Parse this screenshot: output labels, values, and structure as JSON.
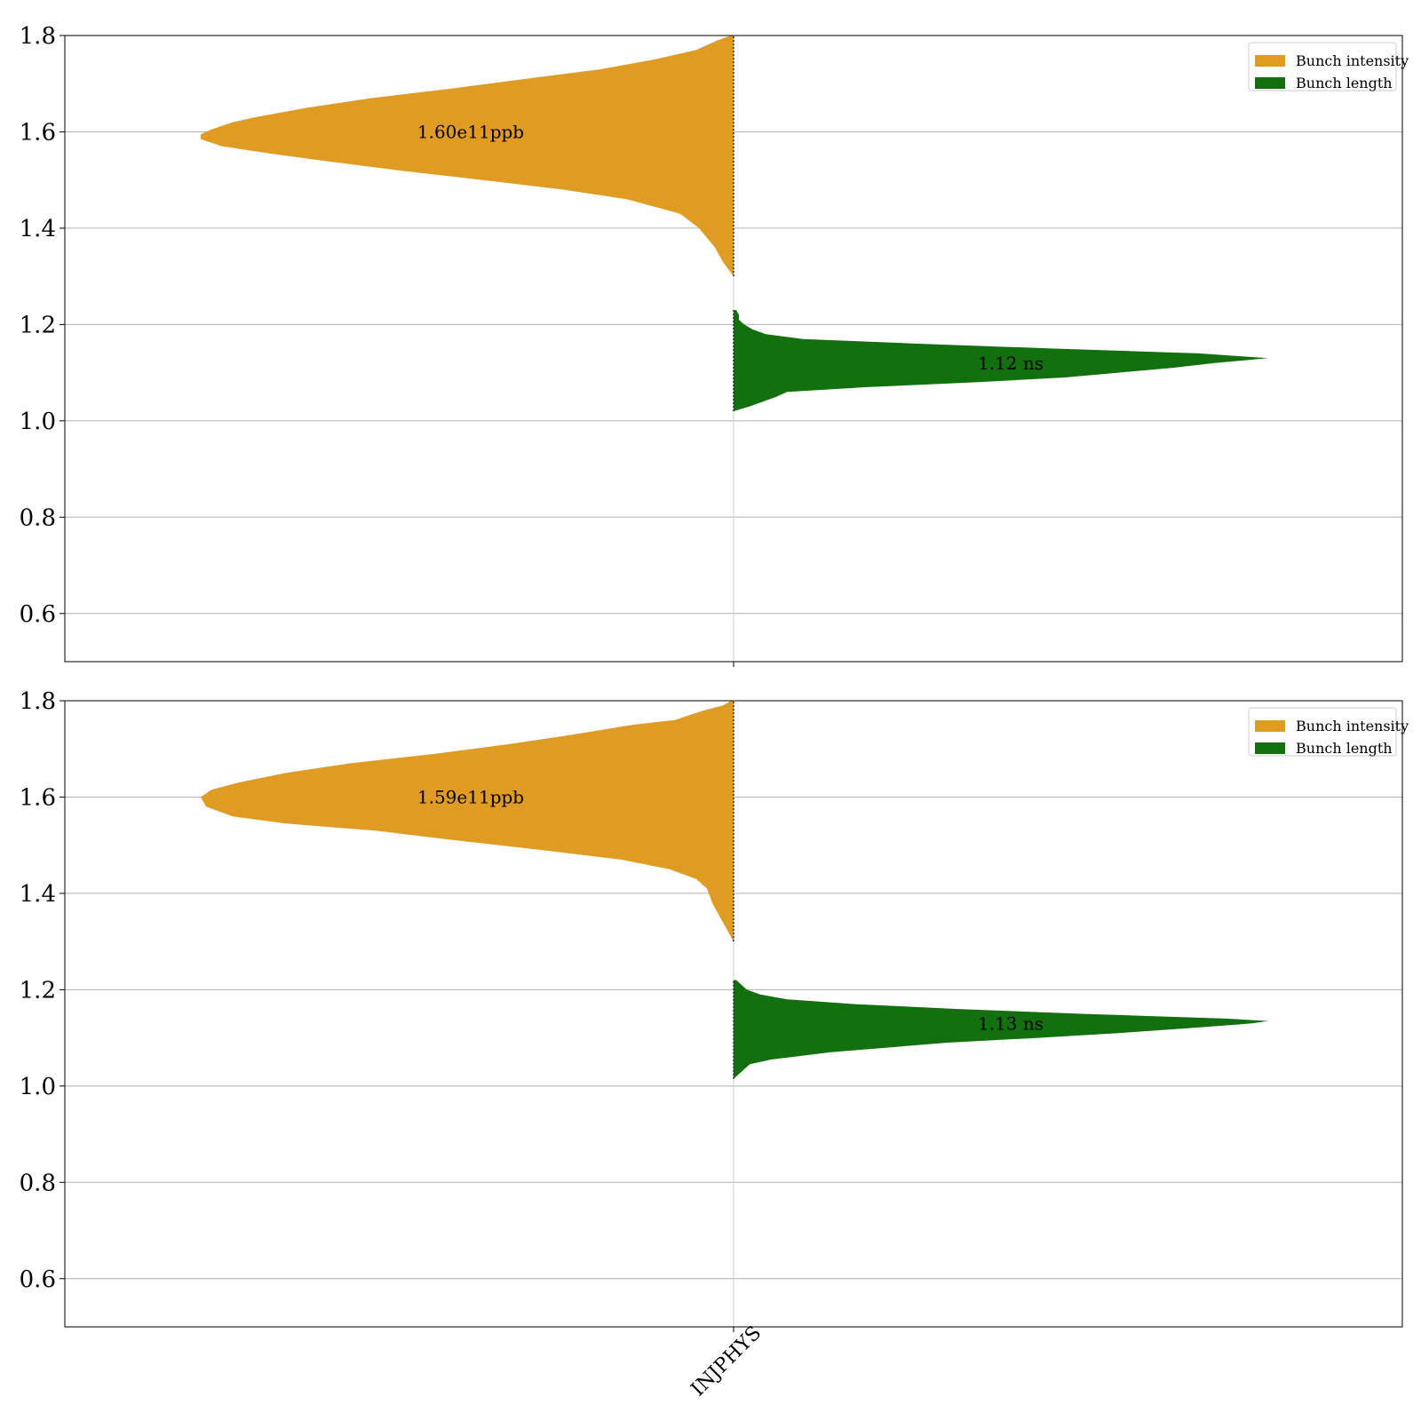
{
  "chart_data": [
    {
      "type": "violin",
      "category": "INJPHYS",
      "ylim": [
        0.5,
        1.8
      ],
      "yticks": [
        "0.6",
        "0.8",
        "1.0",
        "1.2",
        "1.4",
        "1.6",
        "1.8"
      ],
      "grid": true,
      "legend": {
        "placement": "top-right",
        "entries": [
          "Bunch intensity",
          "Bunch length"
        ]
      },
      "series": [
        {
          "name": "Bunch intensity",
          "color": "#E09B22",
          "side": "left",
          "annotation": "1.60e11ppb",
          "annotation_y": 1.6,
          "profile": [
            [
              1.3,
              0.0
            ],
            [
              1.33,
              0.02
            ],
            [
              1.36,
              0.035
            ],
            [
              1.4,
              0.065
            ],
            [
              1.43,
              0.1
            ],
            [
              1.46,
              0.2
            ],
            [
              1.48,
              0.32
            ],
            [
              1.5,
              0.47
            ],
            [
              1.52,
              0.63
            ],
            [
              1.54,
              0.77
            ],
            [
              1.555,
              0.87
            ],
            [
              1.57,
              0.96
            ],
            [
              1.585,
              1.0
            ],
            [
              1.595,
              1.0
            ],
            [
              1.605,
              0.98
            ],
            [
              1.62,
              0.94
            ],
            [
              1.63,
              0.9
            ],
            [
              1.65,
              0.8
            ],
            [
              1.67,
              0.68
            ],
            [
              1.69,
              0.53
            ],
            [
              1.71,
              0.39
            ],
            [
              1.73,
              0.25
            ],
            [
              1.75,
              0.15
            ],
            [
              1.77,
              0.07
            ],
            [
              1.79,
              0.03
            ],
            [
              1.8,
              0.005
            ]
          ]
        },
        {
          "name": "Bunch length",
          "color": "#13700F",
          "side": "right",
          "annotation": "1.12 ns",
          "annotation_y": 1.12,
          "profile": [
            [
              1.02,
              0.0
            ],
            [
              1.03,
              0.03
            ],
            [
              1.05,
              0.08
            ],
            [
              1.055,
              0.09
            ],
            [
              1.06,
              0.1
            ],
            [
              1.07,
              0.25
            ],
            [
              1.08,
              0.45
            ],
            [
              1.09,
              0.62
            ],
            [
              1.1,
              0.72
            ],
            [
              1.11,
              0.82
            ],
            [
              1.12,
              0.9
            ],
            [
              1.13,
              1.0
            ],
            [
              1.14,
              0.87
            ],
            [
              1.15,
              0.6
            ],
            [
              1.16,
              0.35
            ],
            [
              1.17,
              0.13
            ],
            [
              1.18,
              0.06
            ],
            [
              1.19,
              0.035
            ],
            [
              1.2,
              0.02
            ],
            [
              1.21,
              0.01
            ],
            [
              1.22,
              0.01
            ],
            [
              1.23,
              0.005
            ]
          ]
        }
      ]
    },
    {
      "type": "violin",
      "category": "INJPHYS",
      "ylim": [
        0.5,
        1.8
      ],
      "yticks": [
        "0.6",
        "0.8",
        "1.0",
        "1.2",
        "1.4",
        "1.6",
        "1.8"
      ],
      "grid": true,
      "legend": {
        "placement": "top-right",
        "entries": [
          "Bunch intensity",
          "Bunch length"
        ]
      },
      "series": [
        {
          "name": "Bunch intensity",
          "color": "#E09B22",
          "side": "left",
          "annotation": "1.59e11ppb",
          "annotation_y": 1.6,
          "profile": [
            [
              1.3,
              0.0
            ],
            [
              1.34,
              0.02
            ],
            [
              1.38,
              0.04
            ],
            [
              1.41,
              0.05
            ],
            [
              1.43,
              0.07
            ],
            [
              1.45,
              0.12
            ],
            [
              1.47,
              0.21
            ],
            [
              1.49,
              0.36
            ],
            [
              1.51,
              0.52
            ],
            [
              1.53,
              0.67
            ],
            [
              1.545,
              0.84
            ],
            [
              1.56,
              0.94
            ],
            [
              1.58,
              0.99
            ],
            [
              1.6,
              1.0
            ],
            [
              1.615,
              0.98
            ],
            [
              1.63,
              0.93
            ],
            [
              1.65,
              0.84
            ],
            [
              1.67,
              0.72
            ],
            [
              1.69,
              0.56
            ],
            [
              1.71,
              0.42
            ],
            [
              1.73,
              0.3
            ],
            [
              1.75,
              0.19
            ],
            [
              1.76,
              0.11
            ],
            [
              1.78,
              0.055
            ],
            [
              1.79,
              0.02
            ],
            [
              1.8,
              0.005
            ]
          ]
        },
        {
          "name": "Bunch length",
          "color": "#13700F",
          "side": "right",
          "annotation": "1.13 ns",
          "annotation_y": 1.13,
          "profile": [
            [
              1.015,
              0.0
            ],
            [
              1.03,
              0.015
            ],
            [
              1.045,
              0.03
            ],
            [
              1.055,
              0.07
            ],
            [
              1.07,
              0.18
            ],
            [
              1.09,
              0.4
            ],
            [
              1.1,
              0.57
            ],
            [
              1.11,
              0.72
            ],
            [
              1.12,
              0.85
            ],
            [
              1.13,
              0.97
            ],
            [
              1.135,
              1.0
            ],
            [
              1.14,
              0.92
            ],
            [
              1.15,
              0.65
            ],
            [
              1.16,
              0.42
            ],
            [
              1.17,
              0.23
            ],
            [
              1.18,
              0.1
            ],
            [
              1.19,
              0.05
            ],
            [
              1.2,
              0.025
            ],
            [
              1.21,
              0.015
            ],
            [
              1.22,
              0.005
            ]
          ]
        }
      ]
    }
  ],
  "x_axis": {
    "tick_label": "INJPHYS"
  }
}
